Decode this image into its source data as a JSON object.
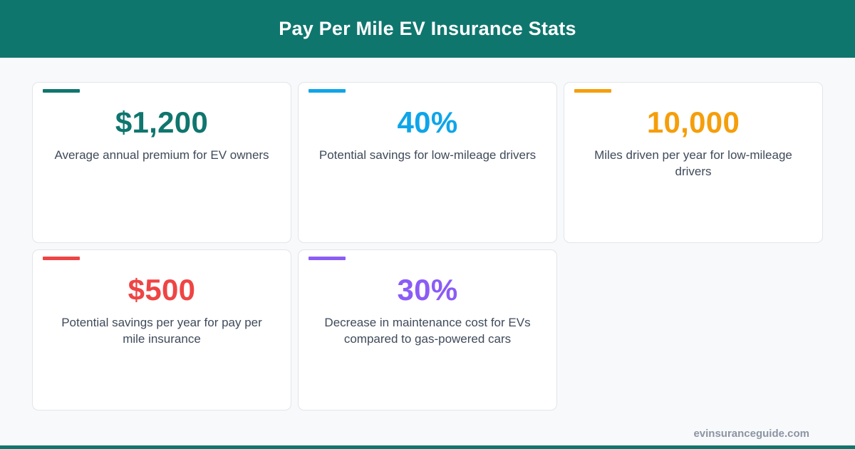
{
  "header": {
    "title": "Pay Per Mile EV Insurance Stats",
    "background": "#0f766e"
  },
  "cards": [
    {
      "value": "$1,200",
      "description": "Average annual premium for EV owners",
      "color": "#0f766e"
    },
    {
      "value": "40%",
      "description": "Potential savings for low-mileage drivers",
      "color": "#0ea5e9"
    },
    {
      "value": "10,000",
      "description": "Miles driven per year for low-mileage drivers",
      "color": "#f59e0b"
    },
    {
      "value": "$500",
      "description": "Potential savings per year for pay per mile insurance",
      "color": "#ef4444"
    },
    {
      "value": "30%",
      "description": "Decrease in maintenance cost for EVs compared to gas-powered cars",
      "color": "#8b5cf6"
    }
  ],
  "footer": {
    "site": "evinsuranceguide.com"
  }
}
